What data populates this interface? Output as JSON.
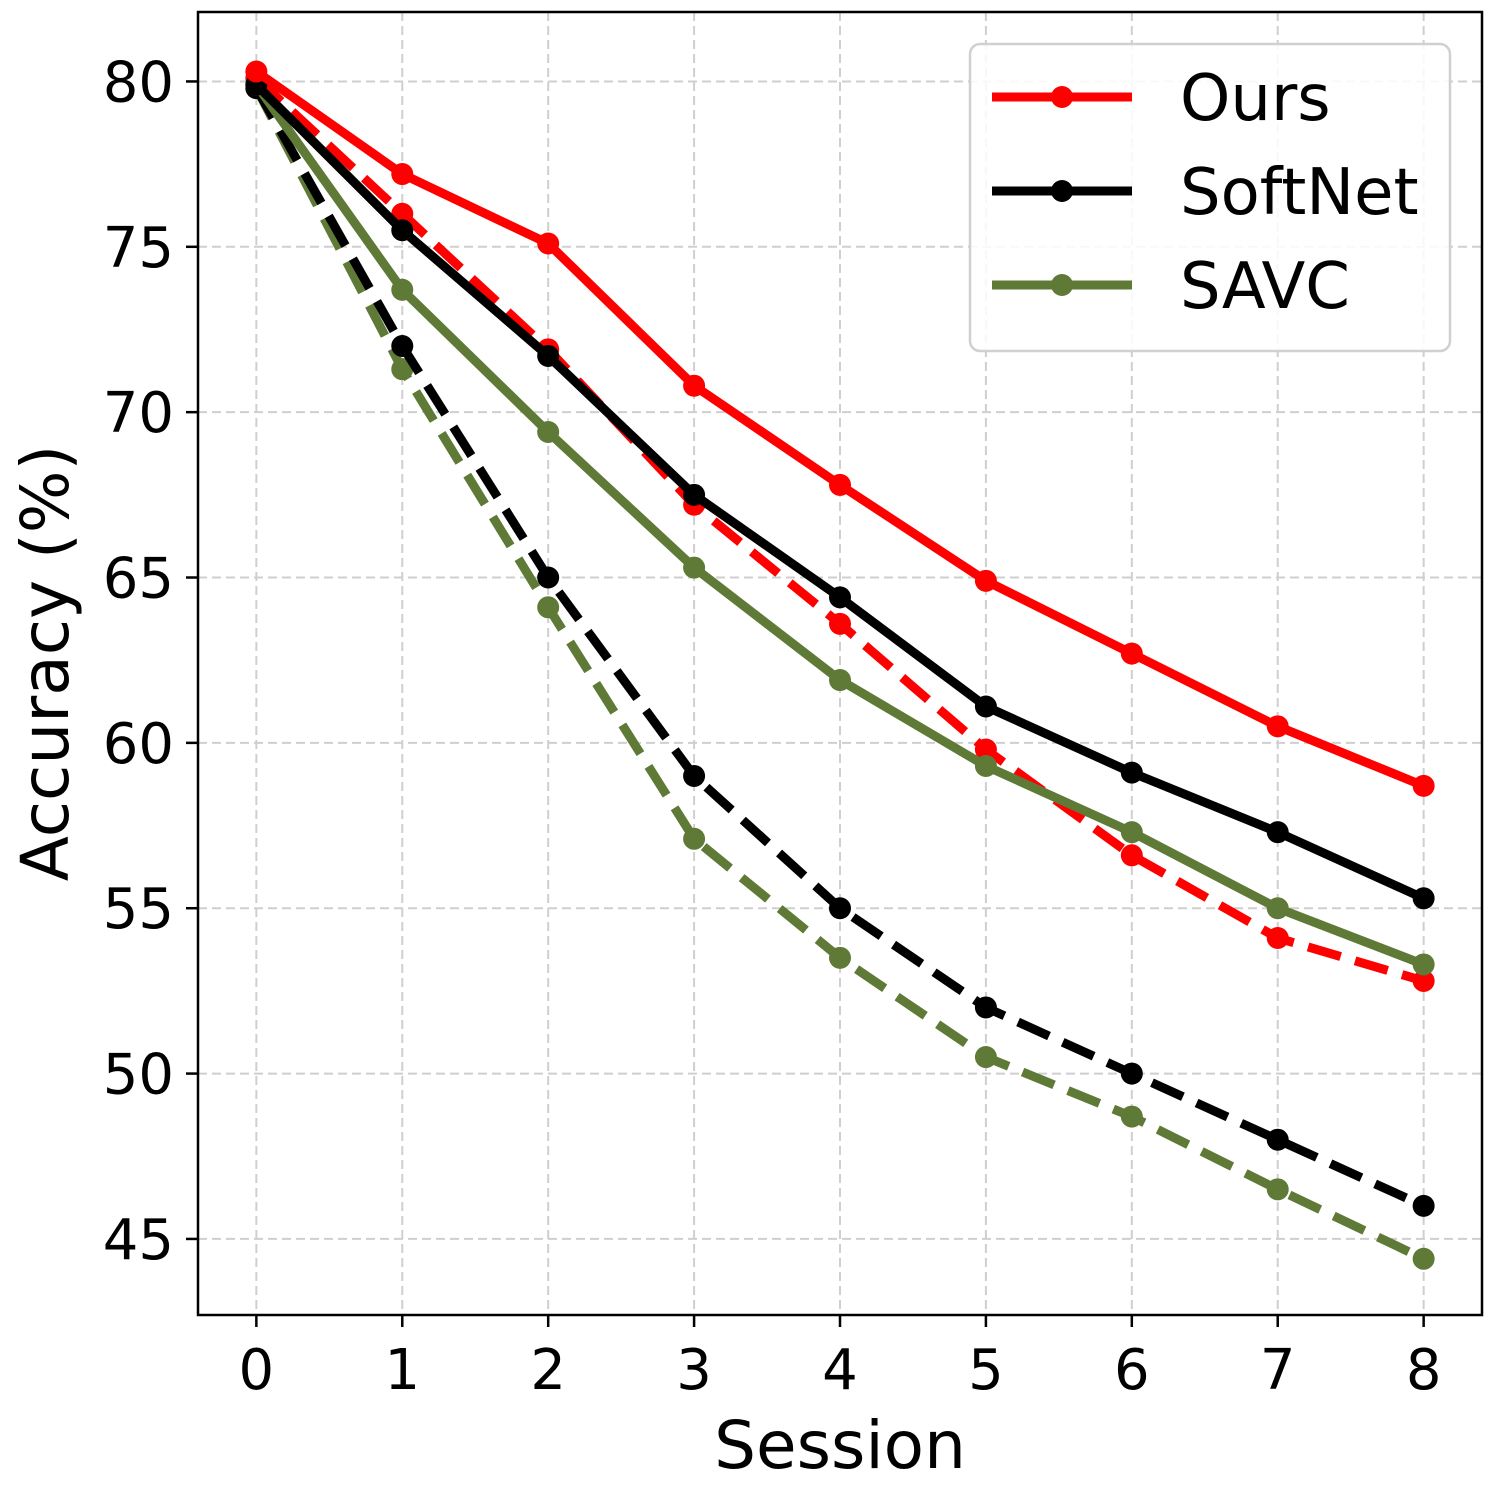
{
  "chart_data": {
    "type": "line",
    "title": "",
    "xlabel": "Session",
    "ylabel": "Accuracy (%)",
    "x": [
      0,
      1,
      2,
      3,
      4,
      5,
      6,
      7,
      8
    ],
    "xticks": [
      "0",
      "1",
      "2",
      "3",
      "4",
      "5",
      "6",
      "7",
      "8"
    ],
    "yticks": [
      "45",
      "50",
      "55",
      "60",
      "65",
      "70",
      "75",
      "80"
    ],
    "xlim": [
      -0.4,
      8.4
    ],
    "ylim": [
      42.7,
      82.1
    ],
    "grid": true,
    "legend_position": "top-right",
    "legend": [
      "Ours",
      "SoftNet",
      "SAVC"
    ],
    "series": [
      {
        "name": "Ours",
        "style": "solid",
        "color": "#ff0000",
        "values": [
          80.3,
          77.2,
          75.1,
          70.8,
          67.8,
          64.9,
          62.7,
          60.5,
          58.7
        ]
      },
      {
        "name": "Ours (dashed)",
        "style": "dashed",
        "color": "#ff0000",
        "values": [
          80.1,
          76.0,
          71.9,
          67.2,
          63.6,
          59.8,
          56.6,
          54.1,
          52.8
        ]
      },
      {
        "name": "SoftNet",
        "style": "solid",
        "color": "#000000",
        "values": [
          79.9,
          75.5,
          71.7,
          67.5,
          64.4,
          61.1,
          59.1,
          57.3,
          55.3
        ]
      },
      {
        "name": "SoftNet (dashed)",
        "style": "dashed",
        "color": "#000000",
        "values": [
          79.8,
          72.0,
          65.0,
          59.0,
          55.0,
          52.0,
          50.0,
          48.0,
          46.0
        ]
      },
      {
        "name": "SAVC",
        "style": "solid",
        "color": "#5e7a36",
        "values": [
          79.9,
          73.7,
          69.4,
          65.3,
          61.9,
          59.3,
          57.3,
          55.0,
          53.3
        ]
      },
      {
        "name": "SAVC (dashed)",
        "style": "dashed",
        "color": "#5e7a36",
        "values": [
          79.8,
          71.3,
          64.1,
          57.1,
          53.5,
          50.5,
          48.7,
          46.5,
          44.4
        ]
      }
    ]
  }
}
